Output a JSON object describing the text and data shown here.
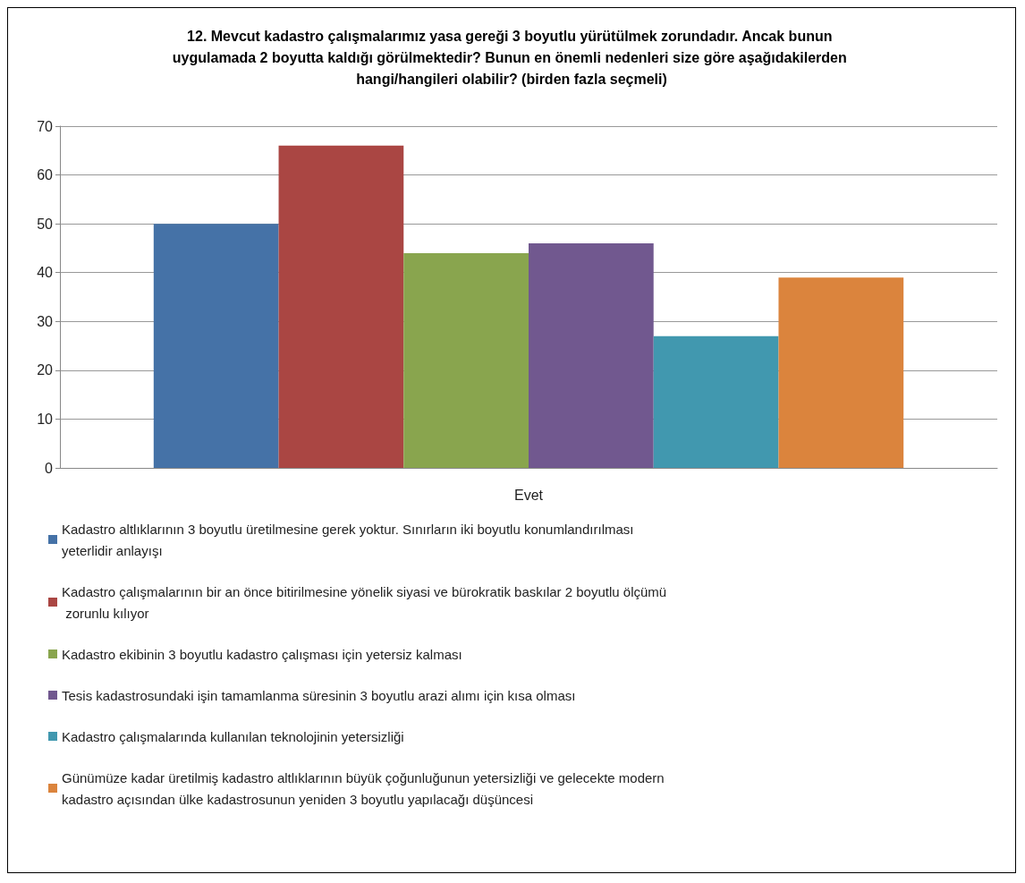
{
  "chart_data": {
    "type": "bar",
    "title": "12. Mevcut kadastro çalışmalarımız yasa gereği 3 boyutlu yürütülmek zorundadır. Ancak bunun uygulamada 2 boyutta kaldığı görülmektedir? Bunun en önemli nedenleri size göre aşağıdakilerden hangi/hangileri olabilir? (birden fazla seçmeli)",
    "categories": [
      "Evet"
    ],
    "series": [
      {
        "name": "Kadastro altlıklarının 3 boyutlu üretilmesine gerek yoktur. Sınırların iki boyutlu konumlandırılması yeterlidir anlayışı",
        "color": "#4572a7",
        "values": [
          50
        ]
      },
      {
        "name": "Kadastro çalışmalarının bir an önce bitirilmesine yönelik siyasi ve bürokratik baskılar 2 boyutlu ölçümü zorunlu kılıyor",
        "color": "#aa4643",
        "values": [
          66
        ]
      },
      {
        "name": "Kadastro ekibinin 3 boyutlu kadastro çalışması için yetersiz kalması",
        "color": "#89a54e",
        "values": [
          44
        ]
      },
      {
        "name": "Tesis kadastrosundaki işin tamamlanma süresinin 3 boyutlu arazi alımı için kısa olması",
        "color": "#71588f",
        "values": [
          46
        ]
      },
      {
        "name": "Kadastro çalışmalarında kullanılan teknolojinin yetersizliği",
        "color": "#4198af",
        "values": [
          27
        ]
      },
      {
        "name": "Günümüze kadar üretilmiş kadastro altlıklarının büyük çoğunluğunun yetersizliği ve gelecekte modern kadastro açısından ülke kadastrosunun yeniden 3 boyutlu yapılacağı düşüncesi",
        "color": "#db843d",
        "values": [
          39
        ]
      }
    ],
    "ylim": [
      0,
      70
    ],
    "yticks": [
      0,
      10,
      20,
      30,
      40,
      50,
      60,
      70
    ],
    "grid": "y",
    "legend": "bottom"
  }
}
